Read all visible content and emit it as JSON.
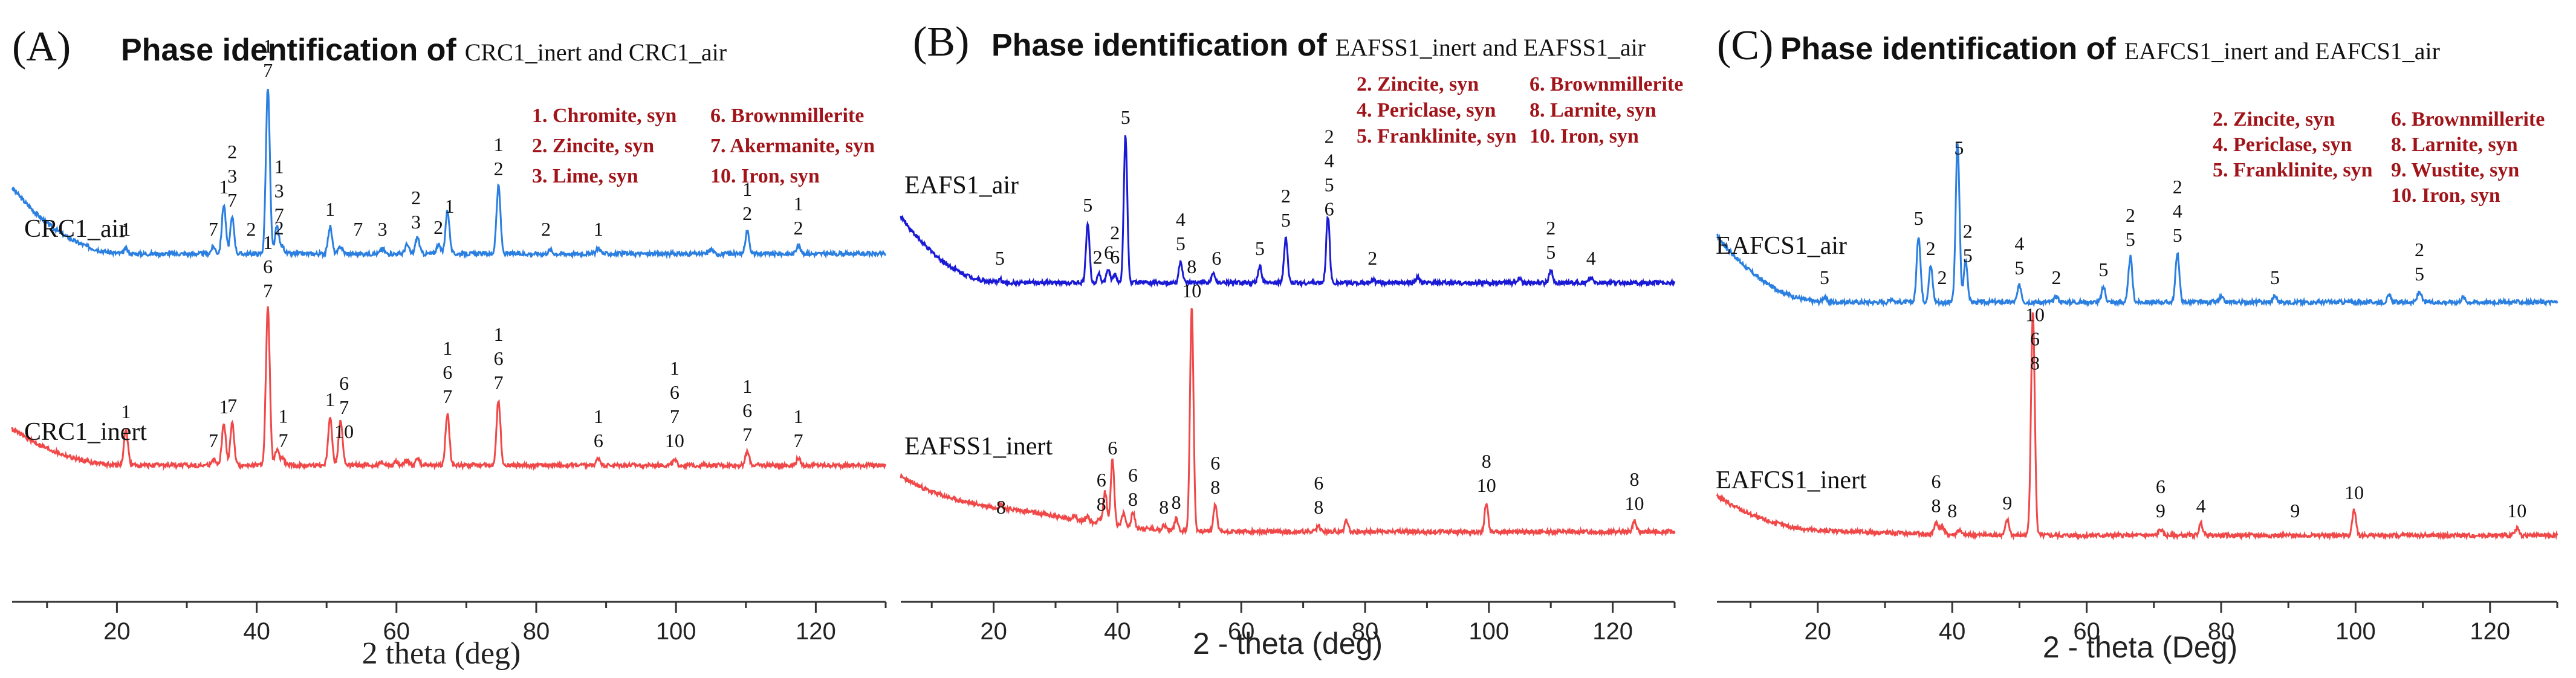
{
  "chart_data": [
    {
      "type": "line",
      "panel": "(A)",
      "title_bold": "Phase identification of",
      "title_rest": "CRC1_inert and CRC1_air",
      "xlabel": "2 theta (deg)",
      "xlim": [
        5,
        130
      ],
      "ticks": [
        20,
        40,
        60,
        80,
        100,
        120
      ],
      "legend": [
        "1. Chromite, syn",
        "2. Zincite, syn",
        "3. Lime, syn",
        "6. Brownmillerite",
        "7. Akermanite, syn",
        "10. Iron, syn"
      ],
      "series": [
        {
          "name": "CRC1_air",
          "color": "#2b7fe0",
          "baseline": 190,
          "peaks": [
            [
              21.3,
              8
            ],
            [
              33.8,
              12
            ],
            [
              35.3,
              82
            ],
            [
              36.5,
              60
            ],
            [
              41.6,
              275
            ],
            [
              42.9,
              45
            ],
            [
              43.7,
              12
            ],
            [
              50.5,
              45
            ],
            [
              52.0,
              12
            ],
            [
              58.0,
              8
            ],
            [
              61.5,
              15
            ],
            [
              63.0,
              28
            ],
            [
              66.0,
              15
            ],
            [
              67.3,
              72
            ],
            [
              74.6,
              112
            ],
            [
              82.0,
              6
            ],
            [
              88.9,
              10
            ],
            [
              105.0,
              8
            ],
            [
              110.2,
              38
            ],
            [
              117.5,
              14
            ]
          ],
          "peak_labels": [
            {
              "x": 21.3,
              "lines": [
                "1"
              ]
            },
            {
              "x": 33.8,
              "lines": [
                "7"
              ]
            },
            {
              "x": 35.3,
              "lines": [
                "1"
              ]
            },
            {
              "x": 36.5,
              "lines": [
                "2",
                "3",
                "7"
              ]
            },
            {
              "x": 39.2,
              "lines": [
                "2"
              ]
            },
            {
              "x": 41.6,
              "lines": [
                "1",
                "7"
              ]
            },
            {
              "x": 43.2,
              "lines": [
                "1",
                "3",
                "7"
              ]
            },
            {
              "x": 43.2,
              "lines": [
                "2"
              ],
              "low": true
            },
            {
              "x": 50.5,
              "lines": [
                "1"
              ]
            },
            {
              "x": 54.5,
              "lines": [
                "7"
              ]
            },
            {
              "x": 58.0,
              "lines": [
                "3"
              ]
            },
            {
              "x": 62.8,
              "lines": [
                "2",
                "3"
              ]
            },
            {
              "x": 66.0,
              "lines": [
                "2"
              ]
            },
            {
              "x": 67.6,
              "lines": [
                "1"
              ]
            },
            {
              "x": 74.6,
              "lines": [
                "1",
                "2"
              ]
            },
            {
              "x": 81.4,
              "lines": [
                "2"
              ]
            },
            {
              "x": 88.9,
              "lines": [
                "1"
              ]
            },
            {
              "x": 110.2,
              "lines": [
                "1",
                "2"
              ]
            },
            {
              "x": 117.5,
              "lines": [
                "1",
                "2"
              ]
            }
          ]
        },
        {
          "name": "CRC1_inert",
          "color": "#f04848",
          "baseline": 125,
          "peaks": [
            [
              21.3,
              60
            ],
            [
              33.8,
              10
            ],
            [
              35.3,
              68
            ],
            [
              36.5,
              70
            ],
            [
              41.6,
              260
            ],
            [
              42.9,
              25
            ],
            [
              43.7,
              12
            ],
            [
              50.5,
              80
            ],
            [
              52.0,
              75
            ],
            [
              58.0,
              6
            ],
            [
              60.0,
              6
            ],
            [
              61.5,
              10
            ],
            [
              63.0,
              12
            ],
            [
              67.3,
              85
            ],
            [
              74.6,
              108
            ],
            [
              88.9,
              12
            ],
            [
              99.8,
              8
            ],
            [
              110.2,
              22
            ],
            [
              117.5,
              12
            ]
          ],
          "peak_labels": [
            {
              "x": 21.3,
              "lines": [
                "1"
              ]
            },
            {
              "x": 33.8,
              "lines": [
                "7"
              ]
            },
            {
              "x": 35.3,
              "lines": [
                "1"
              ]
            },
            {
              "x": 36.5,
              "lines": [
                "7"
              ]
            },
            {
              "x": 41.6,
              "lines": [
                "1",
                "6",
                "7"
              ]
            },
            {
              "x": 43.8,
              "lines": [
                "1",
                "7"
              ]
            },
            {
              "x": 50.5,
              "lines": [
                "1"
              ]
            },
            {
              "x": 52.5,
              "lines": [
                "6",
                "7",
                "10"
              ]
            },
            {
              "x": 67.3,
              "lines": [
                "1",
                "6",
                "7"
              ]
            },
            {
              "x": 74.6,
              "lines": [
                "1",
                "6",
                "7"
              ]
            },
            {
              "x": 88.9,
              "lines": [
                "1",
                "6"
              ]
            },
            {
              "x": 99.8,
              "lines": [
                "1",
                "6",
                "7",
                "10"
              ]
            },
            {
              "x": 110.2,
              "lines": [
                "1",
                "6",
                "7"
              ]
            },
            {
              "x": 117.5,
              "lines": [
                "1",
                "7"
              ]
            }
          ]
        }
      ]
    },
    {
      "type": "line",
      "panel": "(B)",
      "title_bold": "Phase identification of",
      "title_rest": "EAFSS1_inert and EAFSS1_air",
      "xlabel": "2 - theta (deg)",
      "xlim": [
        5,
        130
      ],
      "ticks": [
        20,
        40,
        60,
        80,
        100,
        120
      ],
      "legend": [
        "2. Zincite, syn",
        "4. Periclase, syn",
        "5. Franklinite, syn",
        "6. Brownmillerite",
        "8. Larnite, syn",
        "10. Iron, syn"
      ],
      "series": [
        {
          "name": "EAFS1_air",
          "color": "#1a1ad6",
          "baseline": 165,
          "peaks": [
            [
              21.0,
              6
            ],
            [
              35.2,
              100
            ],
            [
              37.0,
              16
            ],
            [
              38.5,
              22
            ],
            [
              39.6,
              14
            ],
            [
              41.3,
              245
            ],
            [
              50.2,
              36
            ],
            [
              55.5,
              15
            ],
            [
              63.0,
              28
            ],
            [
              67.2,
              75
            ],
            [
              74.0,
              110
            ],
            [
              81.2,
              6
            ],
            [
              88.5,
              10
            ],
            [
              105.0,
              8
            ],
            [
              110.0,
              22
            ],
            [
              116.5,
              8
            ]
          ],
          "peak_labels": [
            {
              "x": 21.0,
              "lines": [
                "5"
              ]
            },
            {
              "x": 35.2,
              "lines": [
                "5"
              ]
            },
            {
              "x": 36.8,
              "lines": [
                "2"
              ]
            },
            {
              "x": 38.6,
              "lines": [
                "6"
              ]
            },
            {
              "x": 39.6,
              "lines": [
                "2",
                "6"
              ]
            },
            {
              "x": 41.3,
              "lines": [
                "5"
              ]
            },
            {
              "x": 50.2,
              "lines": [
                "4",
                "5"
              ]
            },
            {
              "x": 56.0,
              "lines": [
                "6"
              ]
            },
            {
              "x": 63.0,
              "lines": [
                "5"
              ]
            },
            {
              "x": 67.2,
              "lines": [
                "2",
                "5"
              ]
            },
            {
              "x": 74.2,
              "lines": [
                "2",
                "4",
                "5",
                "6"
              ]
            },
            {
              "x": 81.2,
              "lines": [
                "2"
              ]
            },
            {
              "x": 110.0,
              "lines": [
                "2",
                "5"
              ]
            },
            {
              "x": 116.5,
              "lines": [
                "4"
              ]
            }
          ]
        },
        {
          "name": "EAFSS1_inert",
          "color": "#f04848",
          "baseline": 120,
          "peaks": [
            [
              21.2,
              6
            ],
            [
              33.0,
              8
            ],
            [
              35.2,
              10
            ],
            [
              37.0,
              8
            ],
            [
              38.0,
              55
            ],
            [
              39.2,
              110
            ],
            [
              41.0,
              22
            ],
            [
              42.5,
              25
            ],
            [
              47.5,
              8
            ],
            [
              49.5,
              20
            ],
            [
              52.0,
              370
            ],
            [
              55.8,
              45
            ],
            [
              72.5,
              10
            ],
            [
              77.0,
              20
            ],
            [
              99.6,
              48
            ],
            [
              123.5,
              18
            ]
          ],
          "hump": {
            "center": 16,
            "width": 14,
            "height": 42
          },
          "peak_labels": [
            {
              "x": 21.2,
              "lines": [
                "8"
              ]
            },
            {
              "x": 37.4,
              "lines": [
                "6",
                "8"
              ]
            },
            {
              "x": 39.2,
              "lines": [
                "6"
              ]
            },
            {
              "x": 42.5,
              "lines": [
                "6",
                "8"
              ]
            },
            {
              "x": 47.5,
              "lines": [
                "8"
              ]
            },
            {
              "x": 49.5,
              "lines": [
                "8"
              ]
            },
            {
              "x": 52.0,
              "lines": [
                "8",
                "10"
              ]
            },
            {
              "x": 55.8,
              "lines": [
                "6",
                "8"
              ]
            },
            {
              "x": 72.5,
              "lines": [
                "6",
                "8"
              ]
            },
            {
              "x": 99.6,
              "lines": [
                "8",
                "10"
              ]
            },
            {
              "x": 123.5,
              "lines": [
                "8",
                "10"
              ]
            }
          ]
        }
      ]
    },
    {
      "type": "line",
      "panel": "(C)",
      "title_bold": "Phase identification of",
      "title_rest": "EAFCS1_inert and EAFCS1_air",
      "xlabel": "2 - theta (Deg)",
      "xlim": [
        5,
        130
      ],
      "ticks": [
        20,
        40,
        60,
        80,
        100,
        120
      ],
      "legend": [
        "2. Zincite, syn",
        "4. Periclase, syn",
        "5. Franklinite, syn",
        "6. Brownmillerite",
        "8. Larnite, syn",
        "9. Wustite, syn",
        "10. Iron, syn"
      ],
      "series": [
        {
          "name": "EAFCS1_air",
          "color": "#2b7fe0",
          "baseline": 190,
          "peaks": [
            [
              21.0,
              8
            ],
            [
              31.0,
              6
            ],
            [
              35.0,
              110
            ],
            [
              36.8,
              60
            ],
            [
              40.8,
              265
            ],
            [
              42.0,
              70
            ],
            [
              50.0,
              28
            ],
            [
              55.5,
              10
            ],
            [
              62.5,
              25
            ],
            [
              66.5,
              75
            ],
            [
              73.5,
              82
            ],
            [
              80.0,
              8
            ],
            [
              88.0,
              10
            ],
            [
              105.0,
              10
            ],
            [
              109.5,
              18
            ],
            [
              116.0,
              8
            ]
          ],
          "peak_labels": [
            {
              "x": 21.0,
              "lines": [
                "5"
              ]
            },
            {
              "x": 35.0,
              "lines": [
                "5"
              ]
            },
            {
              "x": 36.8,
              "lines": [
                "2"
              ]
            },
            {
              "x": 38.5,
              "lines": [
                "2"
              ]
            },
            {
              "x": 41.0,
              "lines": [
                "5"
              ]
            },
            {
              "x": 42.3,
              "lines": [
                "2",
                "5"
              ]
            },
            {
              "x": 50.0,
              "lines": [
                "4",
                "5"
              ]
            },
            {
              "x": 55.5,
              "lines": [
                "2"
              ]
            },
            {
              "x": 62.5,
              "lines": [
                "5"
              ]
            },
            {
              "x": 66.5,
              "lines": [
                "2",
                "5"
              ]
            },
            {
              "x": 73.5,
              "lines": [
                "2",
                "4",
                "5"
              ]
            },
            {
              "x": 88.0,
              "lines": [
                "5"
              ]
            },
            {
              "x": 109.5,
              "lines": [
                "2",
                "5"
              ]
            }
          ]
        },
        {
          "name": "EAFCS1_inert",
          "color": "#f04848",
          "baseline": 115,
          "peaks": [
            [
              37.6,
              20
            ],
            [
              38.5,
              14
            ],
            [
              41.0,
              8
            ],
            [
              48.2,
              25
            ],
            [
              52.0,
              370
            ],
            [
              71.0,
              10
            ],
            [
              77.0,
              20
            ],
            [
              99.8,
              42
            ],
            [
              124.0,
              12
            ]
          ],
          "hump": {
            "center": 17,
            "width": 12,
            "height": 8
          },
          "peak_labels": [
            {
              "x": 37.6,
              "lines": [
                "6",
                "8"
              ]
            },
            {
              "x": 40.0,
              "lines": [
                "8"
              ]
            },
            {
              "x": 48.2,
              "lines": [
                "9"
              ]
            },
            {
              "x": 52.3,
              "lines": [
                "10",
                "6",
                "8"
              ]
            },
            {
              "x": 71.0,
              "lines": [
                "6",
                "9"
              ]
            },
            {
              "x": 77.0,
              "lines": [
                "4"
              ]
            },
            {
              "x": 91.0,
              "lines": [
                "9"
              ]
            },
            {
              "x": 99.8,
              "lines": [
                "10"
              ]
            },
            {
              "x": 124.0,
              "lines": [
                "10"
              ]
            }
          ]
        }
      ]
    }
  ]
}
